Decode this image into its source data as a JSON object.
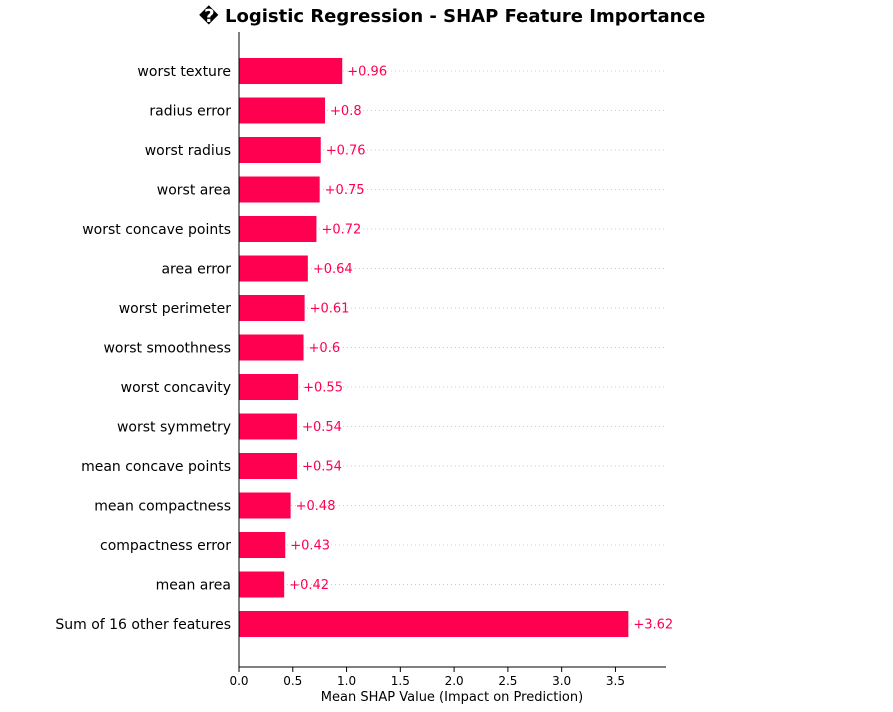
{
  "chart_data": {
    "type": "bar",
    "orientation": "horizontal",
    "title": "� Logistic Regression - SHAP Feature Importance",
    "xlabel": "Mean SHAP Value (Impact on Prediction)",
    "ylabel": "",
    "xlim": [
      0,
      3.97
    ],
    "xticks": [
      0.0,
      0.5,
      1.0,
      1.5,
      2.0,
      2.5,
      3.0,
      3.5
    ],
    "xtick_labels": [
      "0.0",
      "0.5",
      "1.0",
      "1.5",
      "2.0",
      "2.5",
      "3.0",
      "3.5"
    ],
    "grid": "dotted horizontal",
    "bar_color": "#ff0051",
    "label_color": "#ff0051",
    "categories": [
      "worst texture",
      "radius error",
      "worst radius",
      "worst area",
      "worst concave points",
      "area error",
      "worst perimeter",
      "worst smoothness",
      "worst concavity",
      "worst symmetry",
      "mean concave points",
      "mean compactness",
      "compactness error",
      "mean area",
      "Sum of 16 other features"
    ],
    "values": [
      0.96,
      0.8,
      0.76,
      0.75,
      0.72,
      0.64,
      0.61,
      0.6,
      0.55,
      0.54,
      0.54,
      0.48,
      0.43,
      0.42,
      3.62
    ],
    "value_labels": [
      "+0.96",
      "+0.8",
      "+0.76",
      "+0.75",
      "+0.72",
      "+0.64",
      "+0.61",
      "+0.6",
      "+0.55",
      "+0.54",
      "+0.54",
      "+0.48",
      "+0.43",
      "+0.42",
      "+3.62"
    ]
  }
}
